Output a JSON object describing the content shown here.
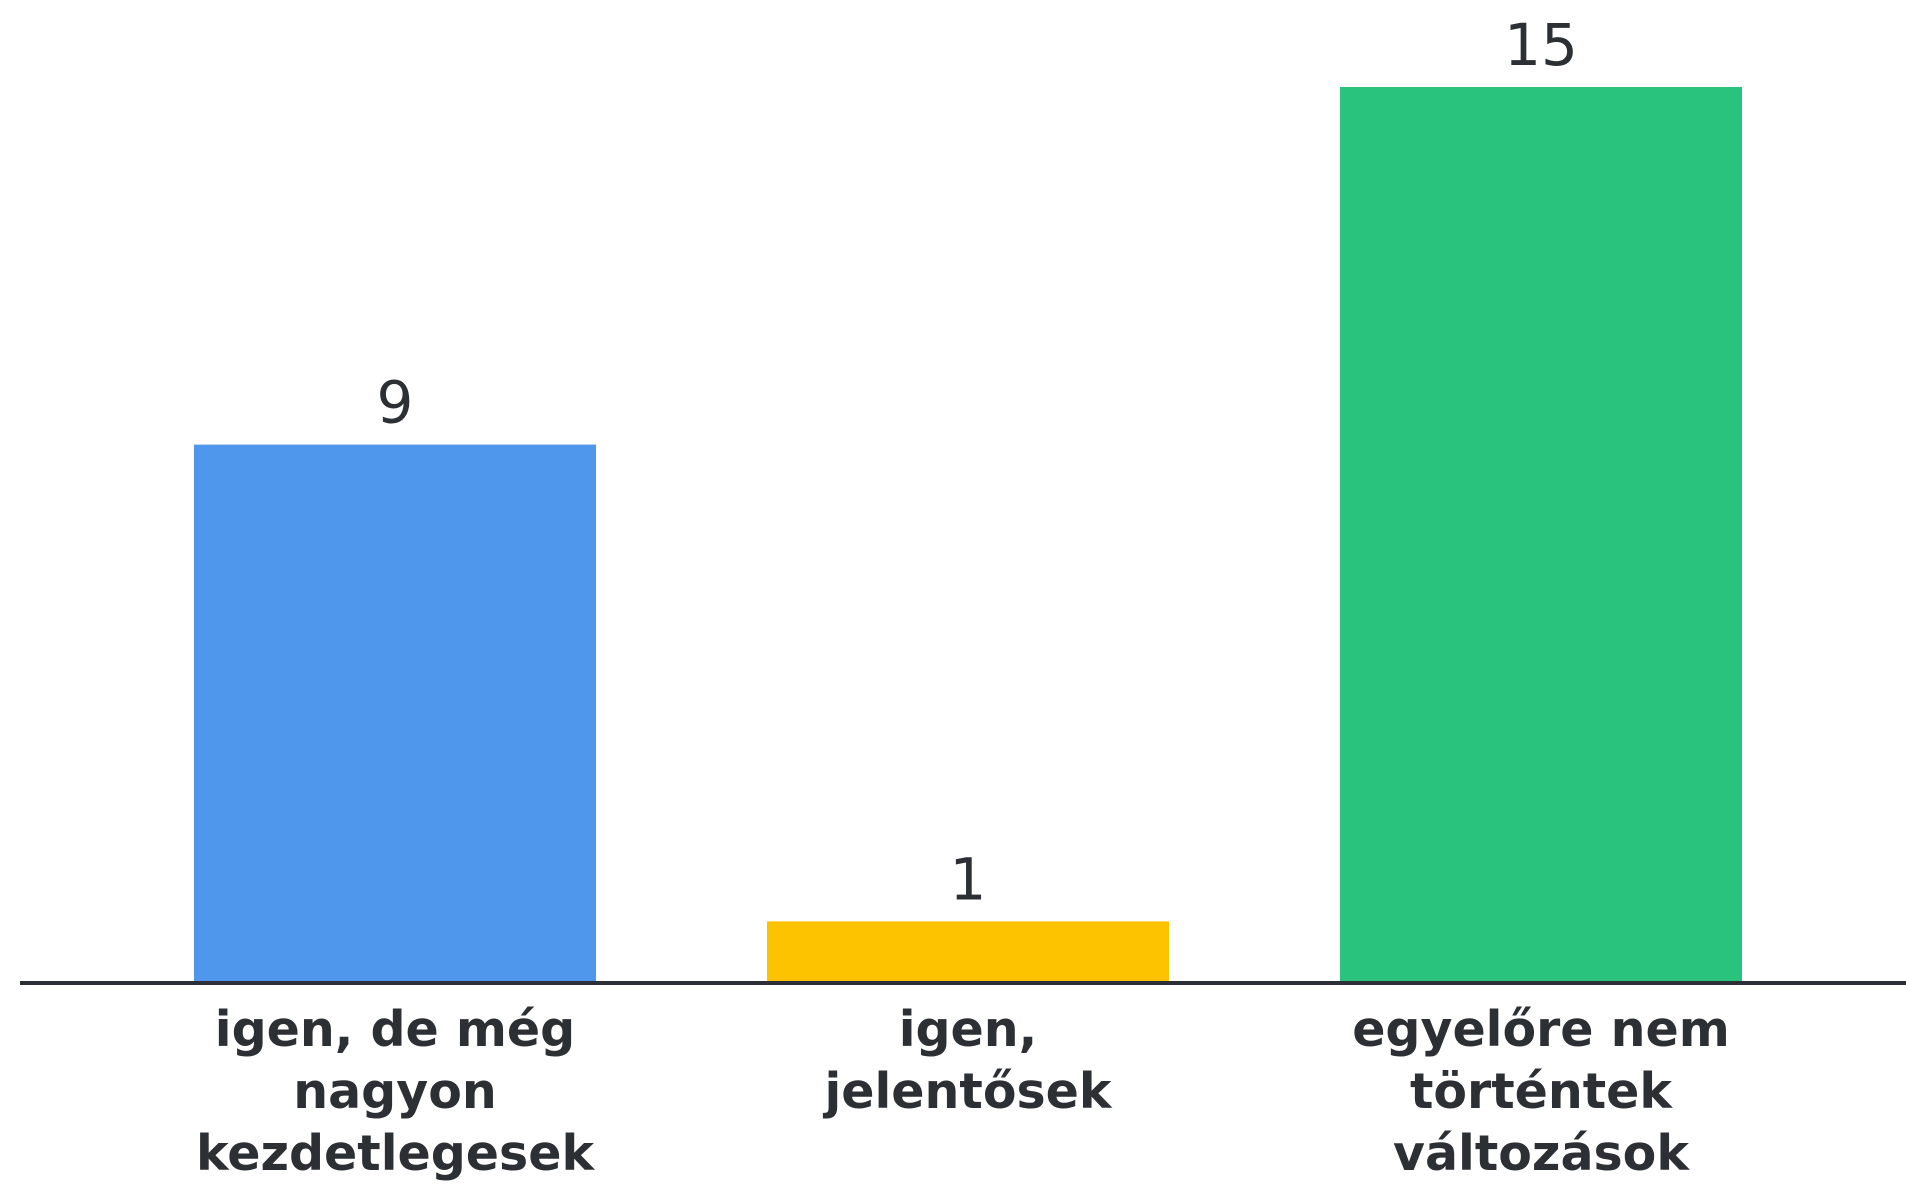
{
  "chart_data": {
    "type": "bar",
    "categories": [
      "igen, de még nagyon kezdetlegesek",
      "igen, jelentősek",
      "egyelőre nem történtek változások"
    ],
    "category_lines": [
      [
        "igen, de még",
        "nagyon",
        "kezdetlegesek"
      ],
      [
        "igen,",
        "jelentősek"
      ],
      [
        "egyelőre nem",
        "történtek",
        "változások"
      ]
    ],
    "values": [
      9,
      1,
      15
    ],
    "value_labels": [
      "9",
      "1",
      "15"
    ],
    "colors": [
      "#4f97ec",
      "#fdc300",
      "#29c37d"
    ],
    "axis_color": "#2c3036",
    "title": "",
    "xlabel": "",
    "ylabel": "",
    "ylim": [
      0,
      15
    ],
    "grid": false,
    "legend": "none"
  }
}
